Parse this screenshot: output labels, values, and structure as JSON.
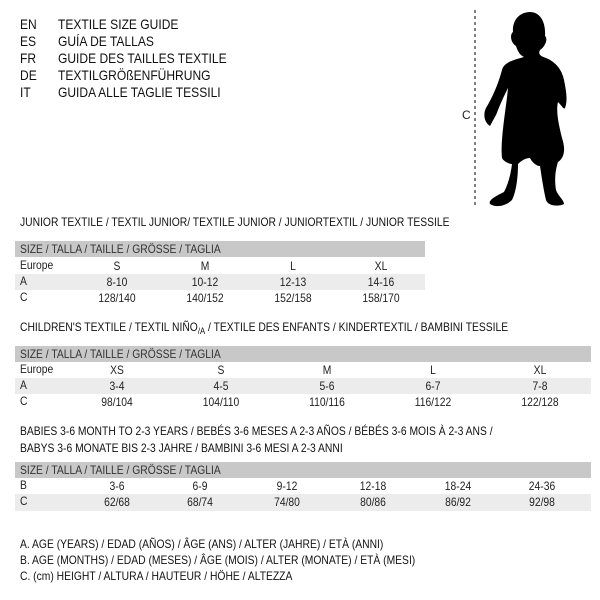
{
  "languages": [
    {
      "code": "EN",
      "text": "TEXTILE SIZE GUIDE"
    },
    {
      "code": "ES",
      "text": "GUÍA DE TALLAS"
    },
    {
      "code": "FR",
      "text": "GUIDE DES TAILLES TEXTILE"
    },
    {
      "code": "DE",
      "text": "TEXTILGRÖßENFÜHRUNG"
    },
    {
      "code": "IT",
      "text": "GUIDA ALLE TAGLIE TESSILI"
    }
  ],
  "figure": {
    "measure_label": "C"
  },
  "junior": {
    "title": "JUNIOR TEXTILE / TEXTIL JUNIOR/ TEXTILE JUNIOR / JUNIORTEXTIL / JUNIOR TESSILE",
    "header": "SIZE / TALLA / TAILLE / GRÖSSE / TAGLIA",
    "rows": [
      {
        "label": "Europe",
        "values": [
          "S",
          "M",
          "L",
          "XL"
        ]
      },
      {
        "label": "A",
        "values": [
          "8-10",
          "10-12",
          "12-13",
          "14-16"
        ]
      },
      {
        "label": "C",
        "values": [
          "128/140",
          "140/152",
          "152/158",
          "158/170"
        ]
      }
    ]
  },
  "children": {
    "title_main": "CHILDREN'S TEXTILE / TEXTIL NIÑO",
    "title_sub": "/A",
    "title_rest": " / TEXTILE DES ENFANTS / KINDERTEXTIL / BAMBINI TESSILE",
    "header": "SIZE / TALLA / TAILLE / GRÖSSE / TAGLIA",
    "rows": [
      {
        "label": "Europe",
        "values": [
          "XS",
          "S",
          "M",
          "L",
          "XL"
        ]
      },
      {
        "label": "A",
        "values": [
          "3-4",
          "4-5",
          "5-6",
          "6-7",
          "7-8"
        ]
      },
      {
        "label": "C",
        "values": [
          "98/104",
          "104/110",
          "110/116",
          "116/122",
          "122/128"
        ]
      }
    ]
  },
  "babies": {
    "title_line1": "BABIES 3-6 MONTH TO 2-3 YEARS / BEBÉS 3-6 MESES A 2-3 AÑOS / BÉBÉS 3-6 MOIS À 2-3 ANS /",
    "title_line2": "BABYS 3-6 MONATE BIS 2-3 JAHRE / BAMBINI 3-6 MESI A 2-3 ANNI",
    "header": "SIZE / TALLA / TAILLE / GRÖSSE / TAGLIA",
    "rows": [
      {
        "label": "B",
        "values": [
          "3-6",
          "6-9",
          "9-12",
          "12-18",
          "18-24",
          "24-36"
        ]
      },
      {
        "label": "C",
        "values": [
          "62/68",
          "68/74",
          "74/80",
          "80/86",
          "86/92",
          "92/98"
        ]
      }
    ]
  },
  "legend": [
    "A. AGE (YEARS) / EDAD (AÑOS) / ÂGE (ANS) / ALTER (JAHRE) / ETÀ (ANNI)",
    "B. AGE (MONTHS) / EDAD (MESES) / ÂGE (MOIS) / ALTER (MONATE) / ETÀ (MESI)",
    "C. (cm) HEIGHT / ALTURA / HAUTEUR / HÖHE / ALTEZZA"
  ]
}
